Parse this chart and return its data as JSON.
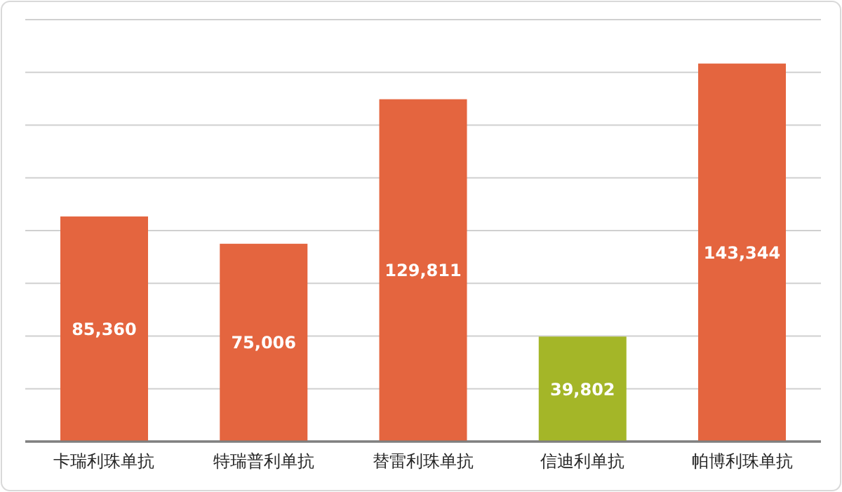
{
  "chart_data": {
    "type": "bar",
    "categories": [
      "卡瑞利珠单抗",
      "特瑞普利单抗",
      "替雷利珠单抗",
      "信迪利单抗",
      "帕博利珠单抗"
    ],
    "values": [
      85360,
      75006,
      129811,
      39802,
      143344
    ],
    "value_labels": [
      "85,360",
      "75,006",
      "129,811",
      "39,802",
      "143,344"
    ],
    "colors": [
      "#e4653f",
      "#e4653f",
      "#e4653f",
      "#a4b628",
      "#e4653f"
    ],
    "tick_labels": "x",
    "grid": "y"
  }
}
